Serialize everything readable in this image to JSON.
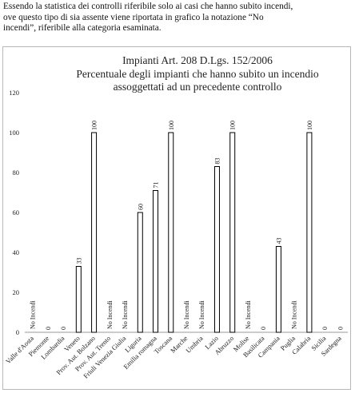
{
  "intro": {
    "line1": "Essendo la statistica dei controlli riferibile solo ai casi che hanno subito incendi,",
    "line2": "ove questo tipo di sia assente viene riportata in grafico la notazione “No",
    "line3": "incendi”, riferibile alla categoria esaminata."
  },
  "chart_data": {
    "type": "bar",
    "title": "Impianti Art. 208 D.Lgs. 152/2006",
    "subtitle": "Percentuale degli impianti che hanno subito un incendio assoggettati ad un precedente controllo",
    "subtitle_lines": [
      "Percentuale degli impianti che hanno subito un incendio",
      "assoggettati ad un precedente controllo"
    ],
    "categories": [
      "Valle d'Aosta",
      "Piemonte",
      "Lombardia",
      "Veneto",
      "Prov. Aut. Bolzano",
      "Prov. Aut. Trento",
      "Friuli Venezia Giulia",
      "Liguria",
      "Emilia romagna",
      "Toscana",
      "Marche",
      "Umbria",
      "Lazio",
      "Abruzzo",
      "Molise",
      "Basilicata",
      "Campania",
      "Puglia",
      "Calabria",
      "Sicilia",
      "Sardegna"
    ],
    "values": [
      null,
      0,
      0,
      33,
      100,
      null,
      null,
      60,
      71,
      100,
      null,
      null,
      83,
      100,
      null,
      0,
      43,
      null,
      100,
      0,
      0
    ],
    "labels": [
      "No Incendi",
      "0",
      "0",
      "33",
      "100",
      "No Incendi",
      "No Incendi",
      "60",
      "71",
      "100",
      "No Incendi",
      "No Incendi",
      "83",
      "100",
      "No Incendi",
      "0",
      "43",
      "No Incendi",
      "100",
      "0",
      "0"
    ],
    "ylim": [
      0,
      120
    ],
    "yticks": [
      0,
      20,
      40,
      60,
      80,
      100,
      120
    ],
    "xlabel": "",
    "ylabel": "",
    "grid": false,
    "bar_fill": "#ffffff",
    "bar_stroke": "#000000"
  }
}
